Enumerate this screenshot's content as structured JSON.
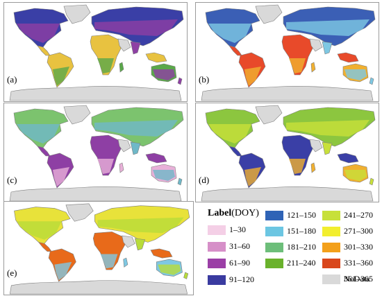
{
  "panels": [
    {
      "id": "a",
      "label": "(a)"
    },
    {
      "id": "b",
      "label": "(b)"
    },
    {
      "id": "c",
      "label": "(c)"
    },
    {
      "id": "d",
      "label": "(d)"
    },
    {
      "id": "e",
      "label": "(e)"
    }
  ],
  "colors": {
    "nodata": "#d9d9d9",
    "land_outline": "#7d7d7d",
    "panel_border": "#9a9a9a"
  },
  "panel_palettes": {
    "a": {
      "north": "#3a3fa6",
      "mid": "#8e3fa4",
      "tropic": "#e8c240",
      "south": "#5aa84a"
    },
    "b": {
      "north": "#3b5fb5",
      "mid": "#7ec8e3",
      "tropic": "#e84a2a",
      "south": "#f0b030"
    },
    "c": {
      "north": "#7cc36e",
      "mid": "#6fb8c8",
      "tropic": "#8e3fa4",
      "south": "#e8b0d8"
    },
    "d": {
      "north": "#8cc63f",
      "mid": "#c8e03a",
      "tropic": "#3a3fa6",
      "south": "#f0b030"
    },
    "e": {
      "north": "#e8e23a",
      "mid": "#b8dc3a",
      "tropic": "#e86a1a",
      "south": "#7ec8e3"
    }
  },
  "legend": {
    "title_bold": "Label",
    "title_unit": "(DOY)",
    "items": [
      {
        "label": "1–30",
        "color": "#f4cfe6"
      },
      {
        "label": "31–60",
        "color": "#d68fc8"
      },
      {
        "label": "61–90",
        "color": "#9b3fa6"
      },
      {
        "label": "91–120",
        "color": "#3a3ba0"
      },
      {
        "label": "121–150",
        "color": "#2f63b6"
      },
      {
        "label": "151–180",
        "color": "#6cc6e2"
      },
      {
        "label": "181–210",
        "color": "#6dbe7a"
      },
      {
        "label": "211–240",
        "color": "#6ab22c"
      },
      {
        "label": "241–270",
        "color": "#c7e03a"
      },
      {
        "label": "271–300",
        "color": "#f2ee2e"
      },
      {
        "label": "301–330",
        "color": "#f3a01b"
      },
      {
        "label": "331–360",
        "color": "#d9471c"
      },
      {
        "label": "361–365",
        "color": "#8b1414"
      },
      {
        "label": "NoData",
        "color": "#d9d9d9"
      }
    ]
  }
}
